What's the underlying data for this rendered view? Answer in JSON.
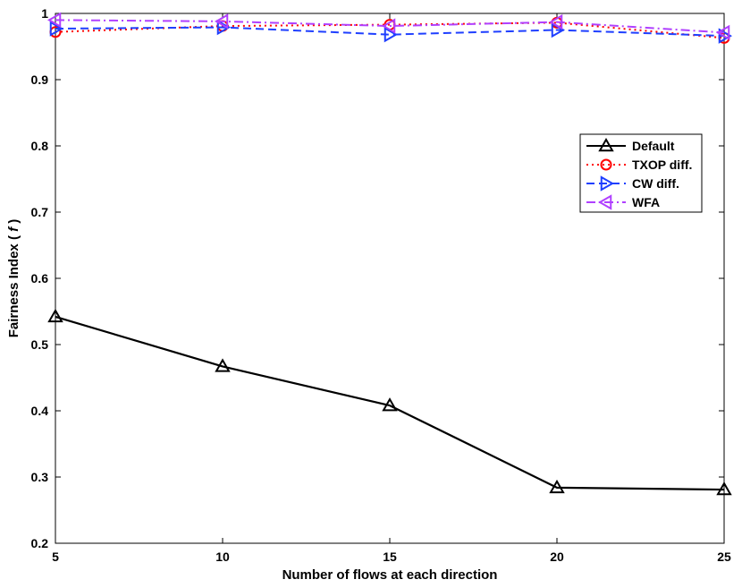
{
  "chart_data": {
    "type": "line",
    "title": "",
    "xlabel": "Number of flows at each direction",
    "ylabel_prefix": "Fairness Index ( ",
    "ylabel_symbol": "f",
    "ylabel_suffix": " )",
    "xlim": [
      5,
      25
    ],
    "ylim": [
      0.2,
      1.0
    ],
    "x": [
      5,
      10,
      15,
      20,
      25
    ],
    "xticks": [
      "5",
      "10",
      "15",
      "20",
      "25"
    ],
    "yticks": [
      "0.2",
      "0.3",
      "0.4",
      "0.5",
      "0.6",
      "0.7",
      "0.8",
      "0.9",
      "1"
    ],
    "grid": false,
    "legend_position": "right",
    "series": [
      {
        "name": "Default",
        "values": [
          0.542,
          0.467,
          0.408,
          0.284,
          0.281
        ],
        "color": "#000000",
        "dash": "solid",
        "marker": "triangle-up"
      },
      {
        "name": "TXOP diff.",
        "values": [
          0.972,
          0.981,
          0.983,
          0.986,
          0.963
        ],
        "color": "#ff0000",
        "dash": "dotted",
        "marker": "circle"
      },
      {
        "name": "CW diff.",
        "values": [
          0.977,
          0.979,
          0.968,
          0.975,
          0.966
        ],
        "color": "#1f3fff",
        "dash": "dashed",
        "marker": "triangle-right"
      },
      {
        "name": "WFA",
        "values": [
          0.99,
          0.988,
          0.981,
          0.987,
          0.971
        ],
        "color": "#b040ff",
        "dash": "dashdot",
        "marker": "triangle-left"
      }
    ]
  }
}
